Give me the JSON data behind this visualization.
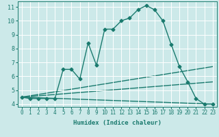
{
  "title": "",
  "xlabel": "Humidex (Indice chaleur)",
  "bg_color": "#cce9e9",
  "grid_color": "#ffffff",
  "line_color": "#1a7a6e",
  "xlim": [
    -0.5,
    23.5
  ],
  "ylim": [
    3.8,
    11.4
  ],
  "xticks": [
    0,
    1,
    2,
    3,
    4,
    5,
    6,
    7,
    8,
    9,
    10,
    11,
    12,
    13,
    14,
    15,
    16,
    17,
    18,
    19,
    20,
    21,
    22,
    23
  ],
  "yticks": [
    4,
    5,
    6,
    7,
    8,
    9,
    10,
    11
  ],
  "main_x": [
    0,
    1,
    2,
    3,
    4,
    5,
    6,
    7,
    8,
    9,
    10,
    11,
    12,
    13,
    14,
    15,
    16,
    17,
    18,
    19,
    20,
    21,
    22,
    23
  ],
  "main_y": [
    4.5,
    4.4,
    4.4,
    4.4,
    4.4,
    6.5,
    6.5,
    5.8,
    8.4,
    6.8,
    9.4,
    9.4,
    10.0,
    10.2,
    10.8,
    11.1,
    10.8,
    10.0,
    8.3,
    6.7,
    5.6,
    4.4,
    4.0,
    4.0
  ],
  "fan_lines": [
    {
      "x": [
        0,
        23
      ],
      "y": [
        4.5,
        4.0
      ]
    },
    {
      "x": [
        0,
        23
      ],
      "y": [
        4.5,
        5.6
      ]
    },
    {
      "x": [
        0,
        23
      ],
      "y": [
        4.5,
        6.7
      ]
    }
  ],
  "xlabel_fontsize": 6.5,
  "tick_fontsize": 5.5,
  "ytick_fontsize": 6.0,
  "linewidth": 1.0,
  "markersize": 2.5
}
